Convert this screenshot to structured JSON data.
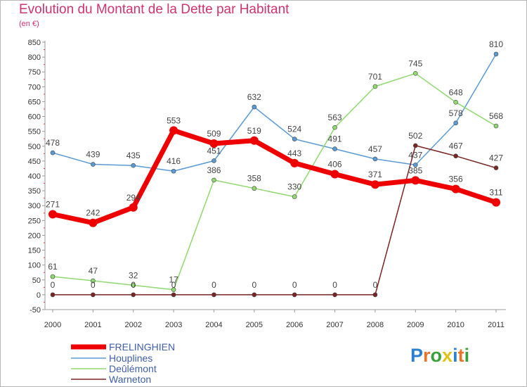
{
  "header": {
    "title": "Evolution du Montant de la Dette par Habitant",
    "subtitle": "(en €)"
  },
  "logo": {
    "text": "Proxiti",
    "letters": [
      "P",
      "r",
      "o",
      "x",
      "i",
      "t",
      "i"
    ],
    "colors": [
      "#2d7fd0",
      "#e8742a",
      "#3aa03a",
      "#e0c21b",
      "#2d7fd0",
      "#e8742a",
      "#3aa03a"
    ]
  },
  "chart_data": {
    "type": "line",
    "title": "Evolution du Montant de la Dette par Habitant",
    "subtitle": "(en €)",
    "xlabel": "",
    "ylabel": "",
    "x": [
      "2000",
      "2001",
      "2002",
      "2003",
      "2004",
      "2005",
      "2006",
      "2007",
      "2008",
      "2009",
      "2010",
      "2011"
    ],
    "ylim": [
      -50,
      850
    ],
    "ytick_step": 50,
    "yticks": [
      "-50",
      "0",
      "50",
      "100",
      "150",
      "200",
      "250",
      "300",
      "350",
      "400",
      "450",
      "500",
      "550",
      "600",
      "650",
      "700",
      "750",
      "800",
      "850"
    ],
    "grid": false,
    "legend_position": "bottom-left",
    "series": [
      {
        "name": "FRELINGHIEN",
        "color": "#ee0000",
        "values": [
          271,
          242,
          294,
          553,
          509,
          519,
          443,
          406,
          371,
          385,
          356,
          311
        ],
        "labels": [
          "271",
          "242",
          "294",
          "553",
          "509",
          "519",
          "443",
          "406",
          "371",
          "385",
          "356",
          "311"
        ]
      },
      {
        "name": "Houplines",
        "color": "#5a9bd4",
        "values": [
          478,
          439,
          435,
          416,
          451,
          632,
          524,
          491,
          457,
          437,
          578,
          810
        ],
        "labels": [
          "478",
          "439",
          "435",
          "416",
          "451",
          "632",
          "524",
          "491",
          "457",
          "437",
          "578",
          "810"
        ]
      },
      {
        "name": "Deûlémont",
        "color": "#90d870",
        "values": [
          61,
          47,
          32,
          17,
          386,
          358,
          330,
          563,
          701,
          745,
          648,
          568
        ],
        "labels": [
          "61",
          "47",
          "32",
          "17",
          "386",
          "358",
          "330",
          "563",
          "701",
          "745",
          "648",
          "568"
        ]
      },
      {
        "name": "Warneton",
        "color": "#7b2424",
        "values": [
          0,
          0,
          0,
          0,
          0,
          0,
          0,
          0,
          0,
          502,
          467,
          427
        ],
        "labels": [
          "0",
          "0",
          "0",
          "0",
          "0",
          "0",
          "0",
          "0",
          "0",
          "502",
          "467",
          "427"
        ]
      }
    ]
  }
}
